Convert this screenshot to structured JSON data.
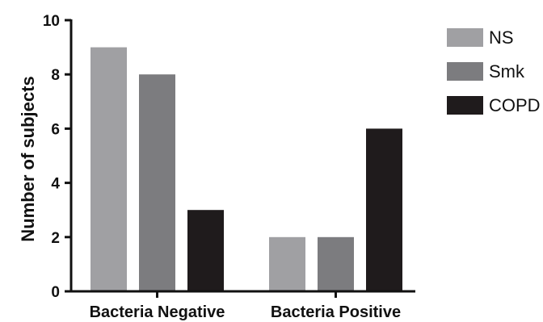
{
  "chart_data": {
    "type": "bar",
    "title": "",
    "xlabel": "",
    "ylabel": "Number of subjects",
    "ylim": [
      0,
      10
    ],
    "yticks": [
      0,
      2,
      4,
      6,
      8,
      10
    ],
    "grid": false,
    "legend_position": "top-right",
    "categories": [
      "Bacteria Negative",
      "Bacteria Positive"
    ],
    "series": [
      {
        "name": "NS",
        "values": [
          9,
          2
        ],
        "color": "#a0a0a3"
      },
      {
        "name": "Smk",
        "values": [
          8,
          2
        ],
        "color": "#7c7c7f"
      },
      {
        "name": "COPD",
        "values": [
          3,
          6
        ],
        "color": "#1f1b1c"
      }
    ]
  }
}
